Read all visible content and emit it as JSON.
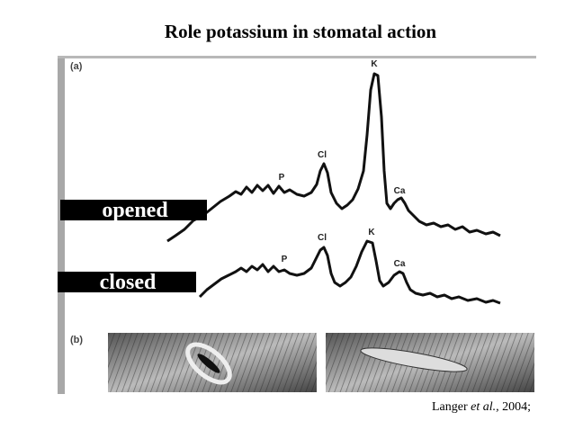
{
  "title": "Role potassium in stomatal action",
  "panel_a": {
    "label": "(a)"
  },
  "panel_b": {
    "label": "(b)"
  },
  "spectra": [
    {
      "label": "opened",
      "peaks": [
        "P",
        "Cl",
        "K",
        "Ca"
      ]
    },
    {
      "label": "closed",
      "peaks": [
        "P",
        "Cl",
        "K",
        "Ca"
      ]
    }
  ],
  "citation": {
    "author": "Langer",
    "etal": "et al.,",
    "year": "2004;"
  }
}
